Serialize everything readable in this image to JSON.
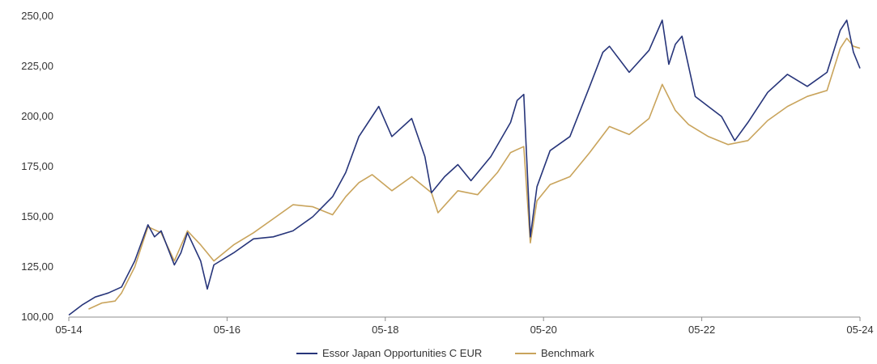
{
  "chart_data": {
    "type": "line",
    "title": "",
    "xlabel": "",
    "ylabel": "",
    "x_ticks": [
      "05-14",
      "05-16",
      "05-18",
      "05-20",
      "05-22",
      "05-24"
    ],
    "y_ticks": [
      "100,00",
      "125,00",
      "150,00",
      "175,00",
      "200,00",
      "225,00",
      "250,00"
    ],
    "ylim": [
      100,
      250
    ],
    "xlim": [
      "2014-05",
      "2024-05"
    ],
    "grid": false,
    "legend_position": "bottom-center",
    "series": [
      {
        "name": "Essor Japan Opportunities C EUR",
        "color": "#27357a",
        "points": [
          [
            "2014-05",
            101
          ],
          [
            "2014-07",
            106
          ],
          [
            "2014-09",
            110
          ],
          [
            "2014-11",
            112
          ],
          [
            "2015-01",
            115
          ],
          [
            "2015-03",
            128
          ],
          [
            "2015-05",
            146
          ],
          [
            "2015-06",
            140
          ],
          [
            "2015-07",
            143
          ],
          [
            "2015-09",
            126
          ],
          [
            "2015-10",
            132
          ],
          [
            "2015-11",
            142
          ],
          [
            "2016-01",
            128
          ],
          [
            "2016-02",
            114
          ],
          [
            "2016-03",
            126
          ],
          [
            "2016-06",
            132
          ],
          [
            "2016-09",
            139
          ],
          [
            "2016-12",
            140
          ],
          [
            "2017-03",
            143
          ],
          [
            "2017-06",
            150
          ],
          [
            "2017-09",
            160
          ],
          [
            "2017-11",
            172
          ],
          [
            "2018-01",
            190
          ],
          [
            "2018-03",
            200
          ],
          [
            "2018-04",
            205
          ],
          [
            "2018-06",
            190
          ],
          [
            "2018-09",
            199
          ],
          [
            "2018-11",
            180
          ],
          [
            "2018-12",
            162
          ],
          [
            "2019-02",
            170
          ],
          [
            "2019-04",
            176
          ],
          [
            "2019-06",
            168
          ],
          [
            "2019-09",
            180
          ],
          [
            "2019-12",
            197
          ],
          [
            "2020-01",
            208
          ],
          [
            "2020-02",
            211
          ],
          [
            "2020-03",
            140
          ],
          [
            "2020-04",
            165
          ],
          [
            "2020-06",
            183
          ],
          [
            "2020-09",
            190
          ],
          [
            "2020-12",
            215
          ],
          [
            "2021-02",
            232
          ],
          [
            "2021-03",
            235
          ],
          [
            "2021-06",
            222
          ],
          [
            "2021-09",
            233
          ],
          [
            "2021-11",
            248
          ],
          [
            "2021-12",
            226
          ],
          [
            "2022-01",
            236
          ],
          [
            "2022-02",
            240
          ],
          [
            "2022-04",
            210
          ],
          [
            "2022-06",
            205
          ],
          [
            "2022-08",
            200
          ],
          [
            "2022-10",
            188
          ],
          [
            "2022-12",
            197
          ],
          [
            "2023-03",
            212
          ],
          [
            "2023-06",
            221
          ],
          [
            "2023-09",
            215
          ],
          [
            "2023-12",
            222
          ],
          [
            "2024-02",
            243
          ],
          [
            "2024-03",
            248
          ],
          [
            "2024-04",
            232
          ],
          [
            "2024-05",
            224
          ]
        ]
      },
      {
        "name": "Benchmark",
        "color": "#c9a45c",
        "points": [
          [
            "2014-08",
            104
          ],
          [
            "2014-10",
            107
          ],
          [
            "2014-12",
            108
          ],
          [
            "2015-01",
            112
          ],
          [
            "2015-03",
            125
          ],
          [
            "2015-05",
            145
          ],
          [
            "2015-07",
            142
          ],
          [
            "2015-09",
            128
          ],
          [
            "2015-11",
            143
          ],
          [
            "2016-01",
            136
          ],
          [
            "2016-03",
            128
          ],
          [
            "2016-06",
            136
          ],
          [
            "2016-09",
            142
          ],
          [
            "2016-12",
            149
          ],
          [
            "2017-03",
            156
          ],
          [
            "2017-06",
            155
          ],
          [
            "2017-09",
            151
          ],
          [
            "2017-11",
            160
          ],
          [
            "2018-01",
            167
          ],
          [
            "2018-03",
            171
          ],
          [
            "2018-06",
            163
          ],
          [
            "2018-09",
            170
          ],
          [
            "2018-12",
            162
          ],
          [
            "2019-01",
            152
          ],
          [
            "2019-04",
            163
          ],
          [
            "2019-07",
            161
          ],
          [
            "2019-10",
            172
          ],
          [
            "2019-12",
            182
          ],
          [
            "2020-02",
            185
          ],
          [
            "2020-03",
            137
          ],
          [
            "2020-04",
            158
          ],
          [
            "2020-06",
            166
          ],
          [
            "2020-09",
            170
          ],
          [
            "2020-12",
            182
          ],
          [
            "2021-03",
            195
          ],
          [
            "2021-06",
            191
          ],
          [
            "2021-09",
            199
          ],
          [
            "2021-11",
            216
          ],
          [
            "2022-01",
            203
          ],
          [
            "2022-03",
            196
          ],
          [
            "2022-06",
            190
          ],
          [
            "2022-09",
            186
          ],
          [
            "2022-12",
            188
          ],
          [
            "2023-03",
            198
          ],
          [
            "2023-06",
            205
          ],
          [
            "2023-09",
            210
          ],
          [
            "2023-12",
            213
          ],
          [
            "2024-02",
            234
          ],
          [
            "2024-03",
            239
          ],
          [
            "2024-04",
            235
          ],
          [
            "2024-05",
            234
          ]
        ]
      }
    ]
  }
}
